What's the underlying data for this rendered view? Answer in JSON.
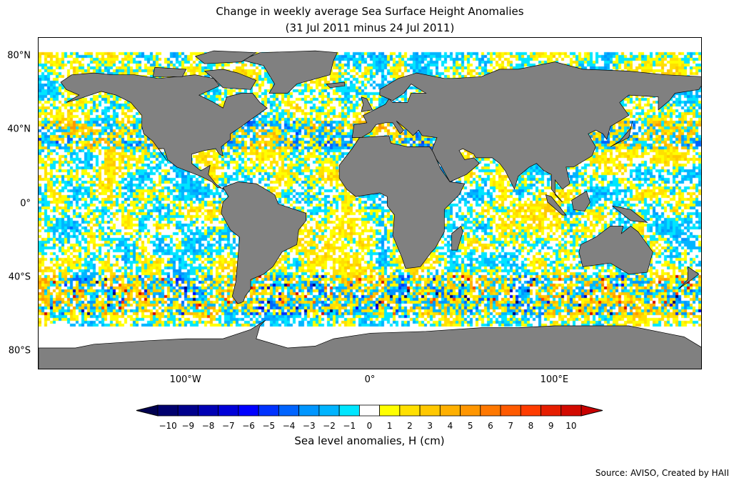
{
  "title": {
    "line1": "Change in weekly average Sea Surface Height Anomalies",
    "line2": "(31 Jul 2011 minus 24 Jul 2011)"
  },
  "map": {
    "projection": "equirectangular",
    "lon_range": [
      -180,
      180
    ],
    "lat_range": [
      -90,
      90
    ],
    "land_color": "#808080",
    "no_data_color": "#ffffff",
    "lat_ticks": [
      {
        "lat": 80,
        "label": "80°N"
      },
      {
        "lat": 40,
        "label": "40°N"
      },
      {
        "lat": 0,
        "label": "0°"
      },
      {
        "lat": -40,
        "label": "40°S"
      },
      {
        "lat": -80,
        "label": "80°S"
      }
    ],
    "lon_ticks": [
      {
        "lon": -100,
        "label": "100°W"
      },
      {
        "lon": 0,
        "label": "0°"
      },
      {
        "lon": 100,
        "label": "100°E"
      }
    ]
  },
  "colorbar": {
    "label": "Sea level anomalies, H (cm)",
    "ticks": [
      "−10",
      "−9",
      "−8",
      "−7",
      "−6",
      "−5",
      "−4",
      "−3",
      "−2",
      "−1",
      "0",
      "1",
      "2",
      "3",
      "4",
      "5",
      "6",
      "7",
      "8",
      "9",
      "10"
    ],
    "colors": [
      "#00006e",
      "#00008c",
      "#0000b4",
      "#0000d8",
      "#0000ff",
      "#0032ff",
      "#0064ff",
      "#0096ff",
      "#00b4ff",
      "#00e6ff",
      "#ffffff",
      "#ffff00",
      "#ffe000",
      "#ffc800",
      "#ffb000",
      "#ff9600",
      "#ff7800",
      "#ff5a00",
      "#ff3c00",
      "#e61e00",
      "#d20a00"
    ],
    "under_color": "#000050",
    "over_color": "#c80000"
  },
  "source": "Source: AVISO, Created by HAII"
}
